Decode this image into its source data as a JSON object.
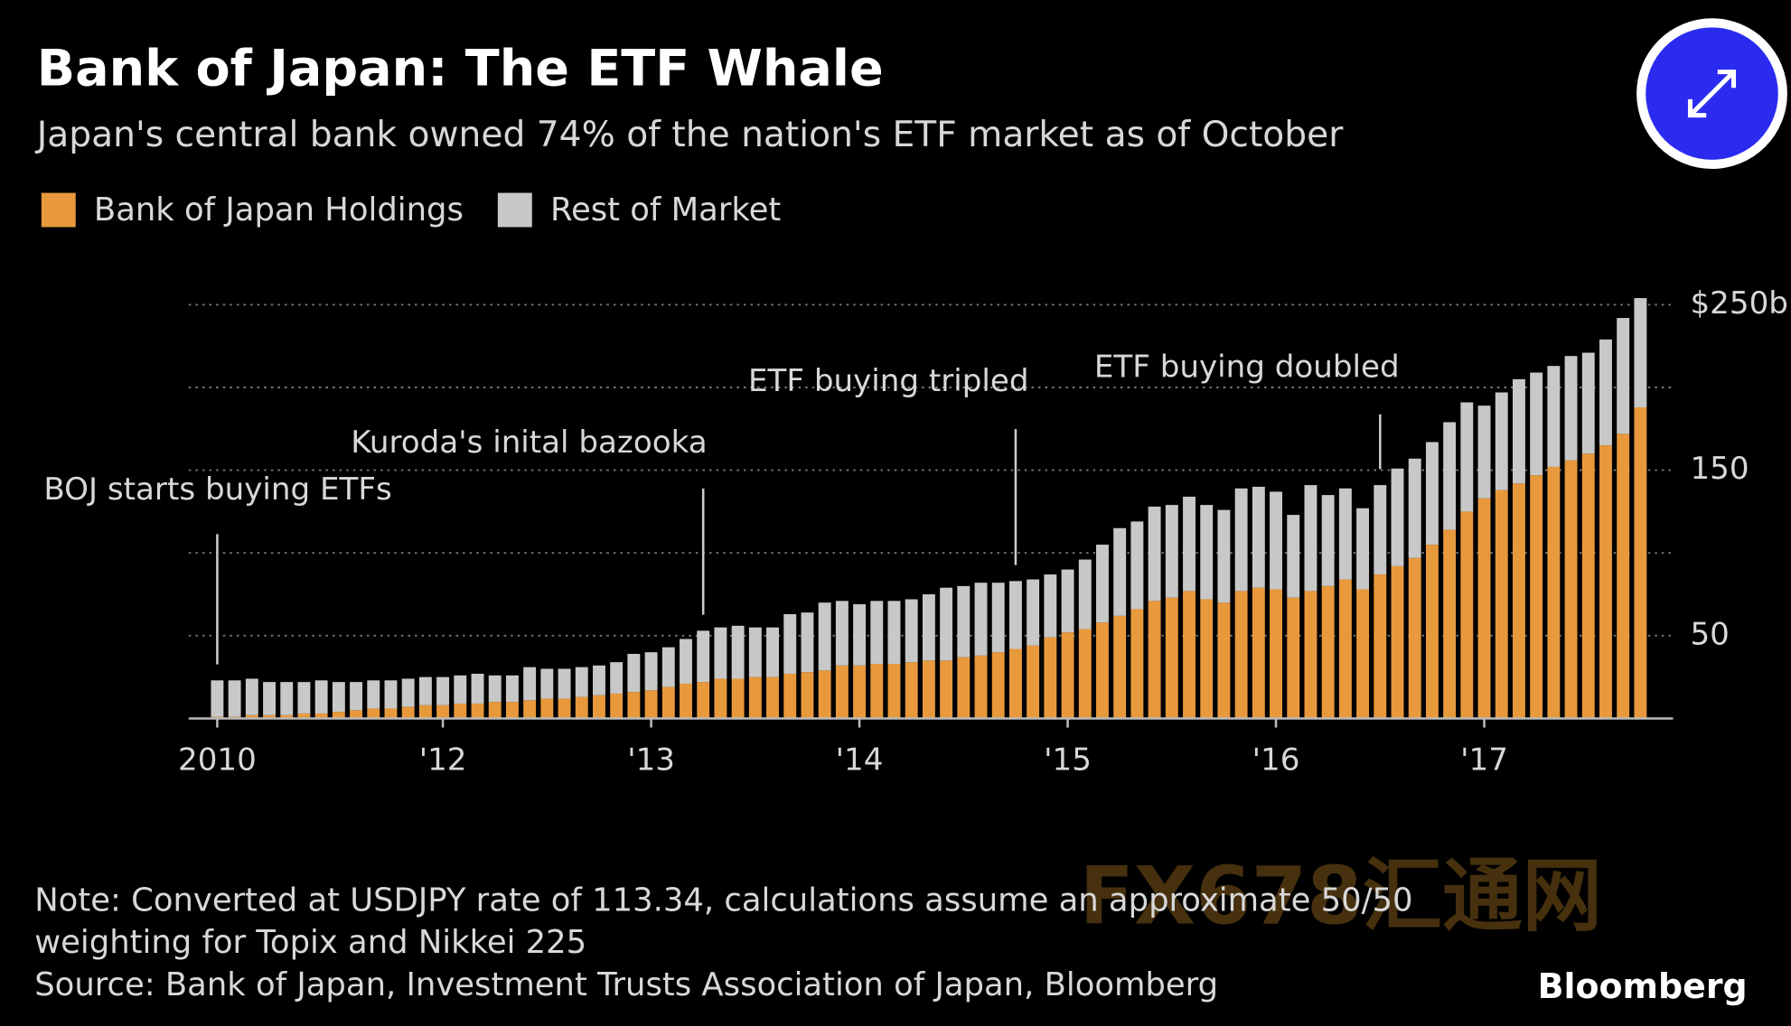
{
  "chart_data": {
    "type": "stacked-bar",
    "title": "Bank of Japan: The ETF Whale",
    "subtitle": "Japan's central bank owned 74% of the nation's ETF market as of October",
    "categories": [
      "2010",
      null,
      null,
      null,
      null,
      null,
      null,
      null,
      null,
      null,
      null,
      null,
      null,
      "'12",
      null,
      null,
      null,
      null,
      null,
      null,
      null,
      null,
      null,
      null,
      null,
      "'13",
      null,
      null,
      null,
      null,
      null,
      null,
      null,
      null,
      null,
      null,
      null,
      "'14",
      null,
      null,
      null,
      null,
      null,
      null,
      null,
      null,
      null,
      null,
      null,
      "'15",
      null,
      null,
      null,
      null,
      null,
      null,
      null,
      null,
      null,
      null,
      null,
      "'16",
      null,
      null,
      null,
      null,
      null,
      null,
      null,
      null,
      null,
      null,
      null,
      "'17",
      null,
      null,
      null,
      null,
      null,
      null,
      null,
      null,
      null
    ],
    "series": [
      {
        "name": "Bank of Japan Holdings",
        "color": "#e8993c",
        "values": [
          1,
          1,
          2,
          2,
          2,
          3,
          3,
          4,
          5,
          6,
          6,
          7,
          8,
          8,
          9,
          9,
          10,
          10,
          11,
          12,
          12,
          13,
          14,
          15,
          16,
          17,
          19,
          21,
          22,
          24,
          24,
          25,
          25,
          27,
          28,
          29,
          32,
          32,
          33,
          33,
          34,
          35,
          35,
          37,
          38,
          40,
          42,
          44,
          49,
          52,
          54,
          58,
          62,
          66,
          71,
          73,
          77,
          72,
          70,
          77,
          79,
          78,
          73,
          77,
          80,
          84,
          78,
          87,
          92,
          97,
          105,
          114,
          125,
          133,
          138,
          142,
          147,
          152,
          156,
          160,
          165,
          172,
          188
        ]
      },
      {
        "name": "Rest of Market",
        "color": "#c8c8c8",
        "values": [
          22,
          22,
          22,
          20,
          20,
          19,
          20,
          18,
          17,
          17,
          17,
          17,
          17,
          17,
          17,
          18,
          16,
          16,
          20,
          18,
          18,
          18,
          18,
          19,
          23,
          23,
          24,
          27,
          31,
          31,
          32,
          30,
          30,
          36,
          36,
          41,
          39,
          37,
          38,
          38,
          38,
          40,
          44,
          43,
          44,
          42,
          41,
          40,
          38,
          38,
          42,
          47,
          53,
          53,
          57,
          56,
          57,
          57,
          56,
          62,
          61,
          59,
          50,
          64,
          55,
          55,
          49,
          54,
          59,
          60,
          62,
          65,
          66,
          56,
          59,
          63,
          62,
          61,
          63,
          61,
          64,
          70,
          66
        ]
      }
    ],
    "ylim": [
      0,
      250
    ],
    "yticks": [
      50,
      150,
      {
        "value": 250,
        "label": "$250b"
      }
    ],
    "minor_gridlines": [
      100,
      200
    ],
    "grid": true,
    "annotations": [
      {
        "text": "BOJ starts buying ETFs",
        "at": 0
      },
      {
        "text": "Kuroda's inital bazooka",
        "at": 28
      },
      {
        "text": "ETF buying tripled",
        "at": 46
      },
      {
        "text": "ETF buying doubled",
        "at": 67
      }
    ],
    "note": [
      "Note: Converted at USDJPY rate of 113.34, calculations assume an approximate 50/50",
      "weighting for Topix and Nikkei 225"
    ],
    "source": "Source: Bank of Japan, Investment Trusts Association of Japan, Bloomberg",
    "brand": "Bloomberg",
    "watermark": "FX678汇通网"
  }
}
